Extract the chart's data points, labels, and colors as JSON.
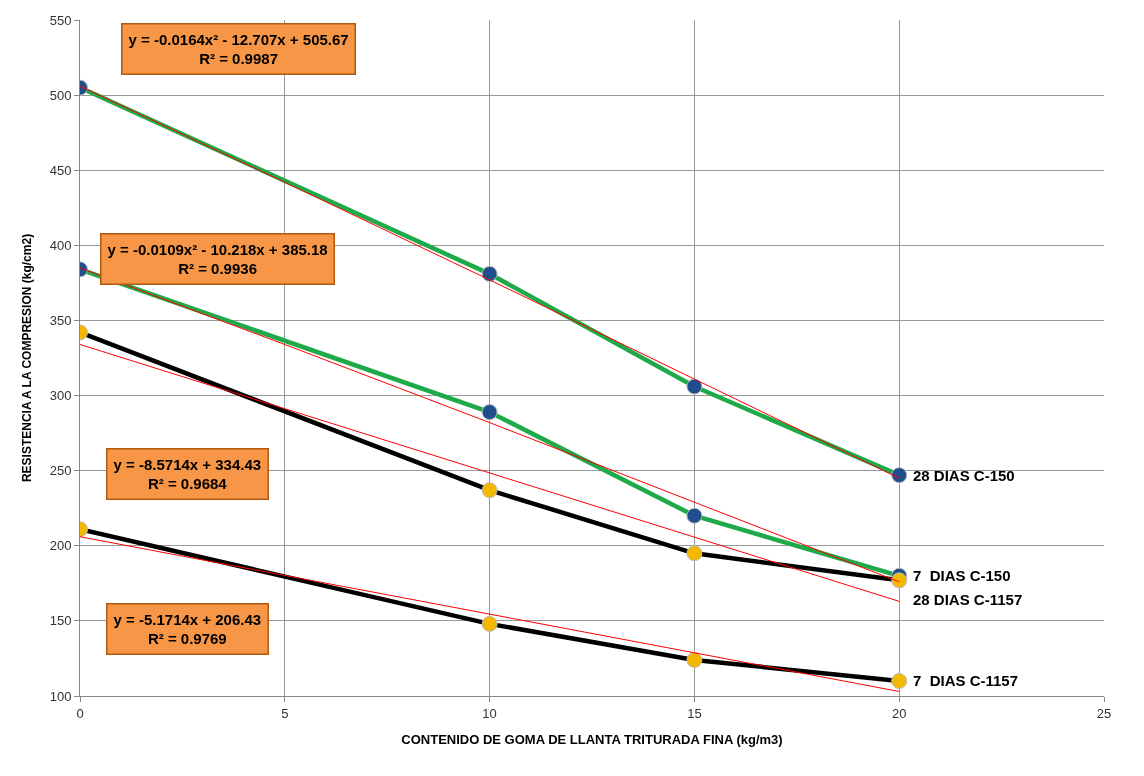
{
  "chart_data": {
    "type": "line",
    "xlabel": "CONTENIDO DE GOMA DE LLANTA TRITURADA FINA (kg/m3)",
    "ylabel": "RESISTENCIA A LA COMPRESION (kg/cm2)",
    "x": [
      0,
      10,
      15,
      20
    ],
    "series": [
      {
        "name": "28 DIAS C-150",
        "color": "#1faa4a",
        "colors": [
          "#1f4e8c",
          "#1f4e8c",
          "#1f4e8c",
          "#1f4e8c"
        ],
        "values": [
          505,
          381,
          306,
          247
        ]
      },
      {
        "name": "7  DIAS C-150",
        "color": "#1faa4a",
        "colors": [
          "#1f4e8c",
          "#1f4e8c",
          "#1f4e8c",
          "#1f4e8c"
        ],
        "values": [
          384,
          289,
          220,
          180
        ]
      },
      {
        "name": "28 DIAS C-1157",
        "color": "#000000",
        "colors": [
          "#f5b800",
          "#f5b800",
          "#f5b800",
          "#f5b800"
        ],
        "values": [
          342,
          237,
          195,
          177
        ]
      },
      {
        "name": "7  DIAS C-1157",
        "color": "#000000",
        "colors": [
          "#f5b800",
          "#f5b800",
          "#f5b800",
          "#f5b800"
        ],
        "values": [
          211,
          148,
          124,
          110
        ]
      },
      {
        "type": "line",
        "marker": "none",
        "color": "#ff0000",
        "x": [
          0,
          5,
          10,
          15,
          20
        ],
        "values": [
          506,
          442,
          377,
          311,
          245
        ]
      },
      {
        "type": "line",
        "marker": "none",
        "color": "#ff0000",
        "x": [
          0,
          5,
          10,
          15,
          20
        ],
        "values": [
          385,
          334,
          282,
          229,
          176
        ]
      },
      {
        "type": "line",
        "marker": "none",
        "color": "#ff0000",
        "x": [
          0,
          20
        ],
        "values": [
          334,
          163
        ]
      },
      {
        "type": "line",
        "marker": "none",
        "color": "#ff0000",
        "x": [
          0,
          20
        ],
        "values": [
          206,
          103
        ]
      }
    ],
    "annotations": [
      "y = -0.0164x² - 12.707x + 505.67\nR² = 0.9987",
      "y = -0.0109x² - 10.218x + 385.18\nR² = 0.9936",
      "y = -8.5714x + 334.43\nR² = 0.9684",
      "y = -5.1714x + 206.43\nR² = 0.9769"
    ],
    "xlim": [
      0,
      25
    ],
    "xticks": [
      0,
      5,
      10,
      15,
      20,
      25
    ],
    "ylim": [
      100,
      550
    ],
    "yticks": [
      100,
      150,
      200,
      250,
      300,
      350,
      400,
      450,
      500,
      550
    ],
    "grid": true,
    "marker": "circle",
    "line_style": "solid"
  }
}
